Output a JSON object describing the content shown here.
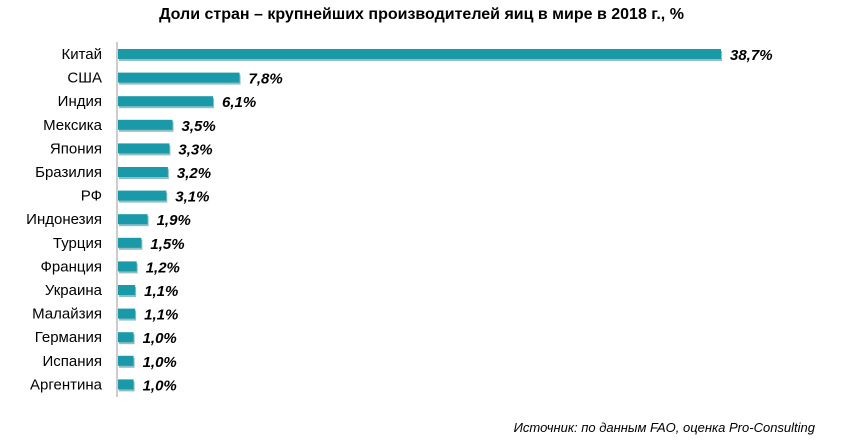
{
  "chart_data": {
    "type": "bar",
    "orientation": "horizontal",
    "title": "Доли стран – крупнейших производителей яиц в мире в 2018 г., %",
    "categories": [
      "Китай",
      "США",
      "Индия",
      "Мексика",
      "Япония",
      "Бразилия",
      "РФ",
      "Индонезия",
      "Турция",
      "Франция",
      "Украина",
      "Малайзия",
      "Германия",
      "Испания",
      "Аргентина"
    ],
    "values": [
      38.7,
      7.8,
      6.1,
      3.5,
      3.3,
      3.2,
      3.1,
      1.9,
      1.5,
      1.2,
      1.1,
      1.1,
      1.0,
      1.0,
      1.0
    ],
    "value_labels": [
      "38,7%",
      "7,8%",
      "6,1%",
      "3,5%",
      "3,3%",
      "3,2%",
      "3,1%",
      "1,9%",
      "1,5%",
      "1,2%",
      "1,1%",
      "1,1%",
      "1,0%",
      "1,0%",
      "1,0%"
    ],
    "xlim": [
      0,
      38.7
    ],
    "grid": false,
    "bar_color": "#1a9aa8",
    "bar_shadow_color": "#0e6f7a"
  },
  "source": "Источник: по данным FAO, оценка Pro-Consulting"
}
